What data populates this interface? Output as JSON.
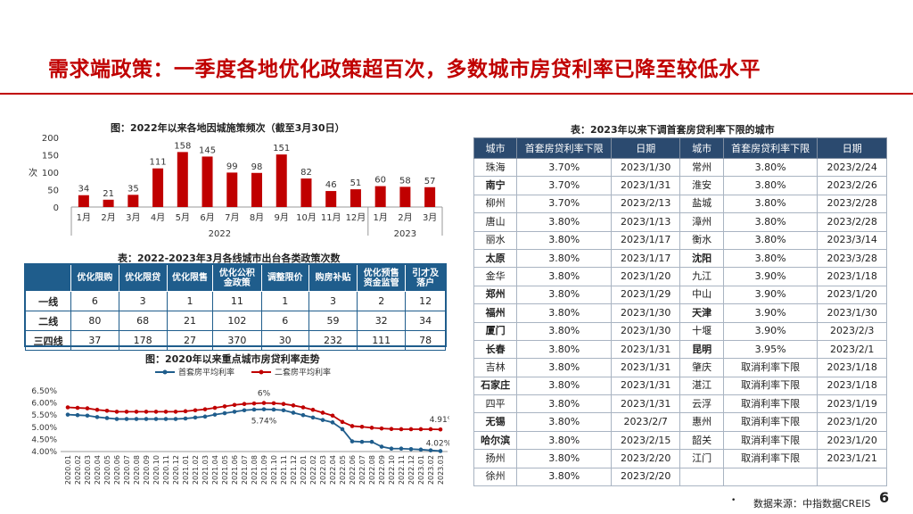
{
  "title": "需求端政策：一季度各地优化政策超百次，多数城市房贷利率已降至较低水平",
  "bar_chart": {
    "title": "图：2022年以来各地因城施策频次（截至3月30日）",
    "y_ticks": [
      "200",
      "150",
      "100",
      "50",
      "0"
    ],
    "y_unit": "次",
    "group_labels": [
      "2022",
      "2023"
    ]
  },
  "policy_table": {
    "title": "表：2022-2023年3月各线城市出台各类政策次数",
    "headers": [
      "",
      "优化限购",
      "优化限贷",
      "优化限售",
      "优化公积金政策",
      "调整限价",
      "购房补贴",
      "优化预售资金监管",
      "引才及落户"
    ],
    "rows": [
      [
        "一线",
        "6",
        "3",
        "1",
        "11",
        "1",
        "3",
        "2",
        "12"
      ],
      [
        "二线",
        "80",
        "68",
        "21",
        "102",
        "6",
        "59",
        "32",
        "34"
      ],
      [
        "三四线",
        "37",
        "178",
        "27",
        "370",
        "30",
        "232",
        "111",
        "78"
      ]
    ]
  },
  "line_chart": {
    "title": "图：2020年以来重点城市房贷利率走势",
    "annotations": [
      "6%",
      "5.74%",
      "4.91%",
      "4.02%"
    ]
  },
  "rate_table": {
    "title": "表：2023年以来下调首套房贷利率下限的城市",
    "headers": [
      "城市",
      "首套房贷利率下限",
      "日期",
      "城市",
      "首套房贷利率下限",
      "日期"
    ],
    "rows": [
      [
        "珠海",
        "3.70%",
        "2023/1/30",
        "常州",
        "3.80%",
        "2023/2/24"
      ],
      [
        "南宁",
        "3.70%",
        "2023/1/31",
        "淮安",
        "3.80%",
        "2023/2/26"
      ],
      [
        "柳州",
        "3.70%",
        "2023/2/13",
        "盐城",
        "3.80%",
        "2023/2/28"
      ],
      [
        "唐山",
        "3.80%",
        "2023/1/13",
        "漳州",
        "3.80%",
        "2023/2/28"
      ],
      [
        "丽水",
        "3.80%",
        "2023/1/17",
        "衡水",
        "3.80%",
        "2023/3/14"
      ],
      [
        "太原",
        "3.80%",
        "2023/1/17",
        "沈阳",
        "3.80%",
        "2023/3/28"
      ],
      [
        "金华",
        "3.80%",
        "2023/1/20",
        "九江",
        "3.90%",
        "2023/1/18"
      ],
      [
        "郑州",
        "3.80%",
        "2023/1/29",
        "中山",
        "3.90%",
        "2023/1/20"
      ],
      [
        "福州",
        "3.80%",
        "2023/1/30",
        "天津",
        "3.90%",
        "2023/1/30"
      ],
      [
        "厦门",
        "3.80%",
        "2023/1/30",
        "十堰",
        "3.90%",
        "2023/2/3"
      ],
      [
        "长春",
        "3.80%",
        "2023/1/31",
        "昆明",
        "3.95%",
        "2023/2/1"
      ],
      [
        "吉林",
        "3.80%",
        "2023/1/31",
        "肇庆",
        "取消利率下限",
        "2023/1/18"
      ],
      [
        "石家庄",
        "3.80%",
        "2023/1/31",
        "湛江",
        "取消利率下限",
        "2023/1/18"
      ],
      [
        "四平",
        "3.80%",
        "2023/1/31",
        "云浮",
        "取消利率下限",
        "2023/1/19"
      ],
      [
        "无锡",
        "3.80%",
        "2023/2/7",
        "惠州",
        "取消利率下限",
        "2023/1/20"
      ],
      [
        "哈尔滨",
        "3.80%",
        "2023/2/15",
        "韶关",
        "取消利率下限",
        "2023/1/20"
      ],
      [
        "扬州",
        "3.80%",
        "2023/2/20",
        "江门",
        "取消利率下限",
        "2023/1/21"
      ],
      [
        "徐州",
        "3.80%",
        "2023/2/20",
        "",
        "",
        ""
      ]
    ],
    "bold_cities": [
      "南宁",
      "太原",
      "沈阳",
      "郑州",
      "福州",
      "天津",
      "厦门",
      "长春",
      "昆明",
      "石家庄",
      "无锡",
      "哈尔滨"
    ]
  },
  "footer": {
    "bullet": "•",
    "source": "数据来源：中指数据CREIS",
    "page": "6"
  },
  "colors": {
    "brand_red": "#c00000",
    "bar_red": "#c00000",
    "first_home_line": "#1f5d8c",
    "second_home_line": "#c00000",
    "table_header": "#1f5d8c"
  },
  "chart_data": [
    {
      "type": "bar",
      "title": "图：2022年以来各地因城施策频次（截至3月30日）",
      "ylabel": "次",
      "ylim": [
        0,
        200
      ],
      "categories": [
        "1月",
        "2月",
        "3月",
        "4月",
        "5月",
        "6月",
        "7月",
        "8月",
        "9月",
        "10月",
        "11月",
        "12月",
        "1月",
        "2月",
        "3月"
      ],
      "groups": [
        {
          "label": "2022",
          "count": 12
        },
        {
          "label": "2023",
          "count": 3
        }
      ],
      "values": [
        34,
        21,
        35,
        111,
        158,
        145,
        99,
        98,
        151,
        82,
        46,
        51,
        60,
        58,
        57
      ]
    },
    {
      "type": "line",
      "title": "图：2020年以来重点城市房贷利率走势",
      "ylim": [
        4.0,
        6.5
      ],
      "y_ticks": [
        "6.50%",
        "6.00%",
        "5.50%",
        "5.00%",
        "4.50%",
        "4.00%"
      ],
      "x": [
        "2020.01",
        "2020.02",
        "2020.03",
        "2020.04",
        "2020.05",
        "2020.06",
        "2020.07",
        "2020.08",
        "2020.09",
        "2020.10",
        "2020.11",
        "2020.12",
        "2021.01",
        "2021.02",
        "2021.03",
        "2021.04",
        "2021.05",
        "2021.06",
        "2021.07",
        "2021.08",
        "2021.09",
        "2021.10",
        "2021.11",
        "2021.12",
        "2022.01",
        "2022.02",
        "2022.03",
        "2022.04",
        "2022.05",
        "2022.06",
        "2022.07",
        "2022.08",
        "2022.09",
        "2022.10",
        "2022.11",
        "2022.12",
        "2023.01",
        "2023.02",
        "2023.03"
      ],
      "series": [
        {
          "name": "首套房平均利率",
          "values": [
            5.52,
            5.5,
            5.48,
            5.42,
            5.38,
            5.34,
            5.34,
            5.34,
            5.34,
            5.34,
            5.34,
            5.34,
            5.36,
            5.4,
            5.44,
            5.52,
            5.58,
            5.64,
            5.7,
            5.73,
            5.74,
            5.73,
            5.7,
            5.6,
            5.5,
            5.4,
            5.3,
            5.2,
            4.92,
            4.42,
            4.4,
            4.4,
            4.2,
            4.12,
            4.12,
            4.1,
            4.08,
            4.05,
            4.02
          ]
        },
        {
          "name": "二套房平均利率",
          "values": [
            5.82,
            5.8,
            5.78,
            5.72,
            5.68,
            5.64,
            5.64,
            5.64,
            5.64,
            5.64,
            5.64,
            5.64,
            5.66,
            5.7,
            5.74,
            5.8,
            5.86,
            5.92,
            5.96,
            5.98,
            6.0,
            5.99,
            5.96,
            5.9,
            5.82,
            5.72,
            5.6,
            5.48,
            5.22,
            5.05,
            5.02,
            4.98,
            4.95,
            4.93,
            4.92,
            4.92,
            4.92,
            4.92,
            4.91
          ]
        }
      ]
    }
  ]
}
